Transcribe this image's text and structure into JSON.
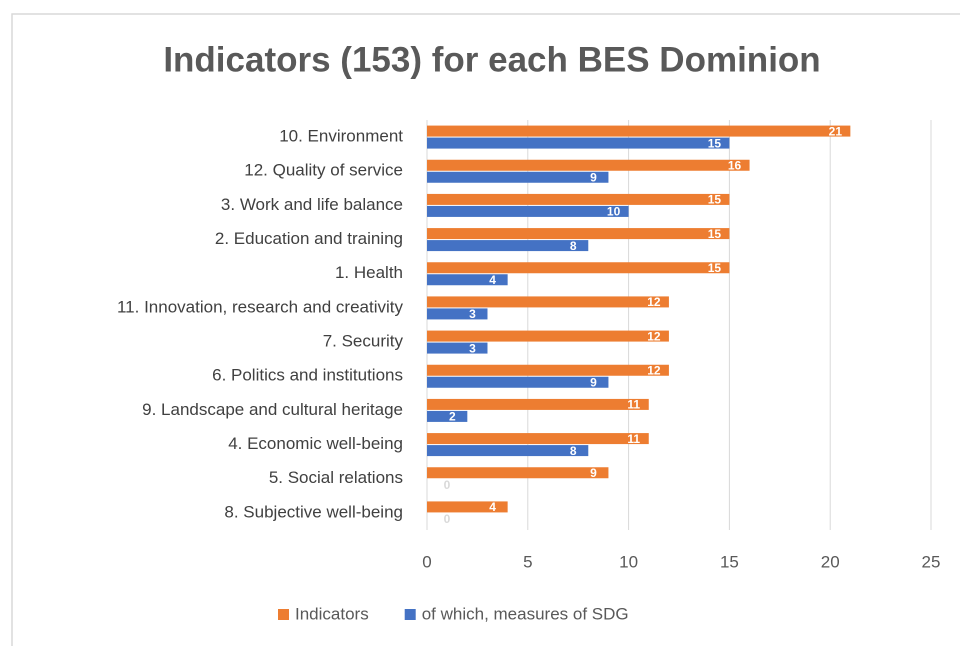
{
  "chart_data": {
    "type": "bar",
    "orientation": "horizontal",
    "title": "Indicators (153) for each BES Dominion",
    "categories": [
      "10. Environment",
      "12. Quality of service",
      "3. Work and life balance",
      "2. Education and training",
      "1. Health",
      "11. Innovation, research and creativity",
      "7. Security",
      "6. Politics and institutions",
      "9. Landscape and cultural heritage",
      "4. Economic well-being",
      "5. Social relations",
      "8. Subjective well-being"
    ],
    "series": [
      {
        "name": "Indicators",
        "color": "#ed7d31",
        "values": [
          21,
          16,
          15,
          15,
          15,
          12,
          12,
          12,
          11,
          11,
          9,
          4
        ]
      },
      {
        "name": "of which, measures of SDG",
        "color": "#4472c4",
        "values": [
          15,
          9,
          10,
          8,
          4,
          3,
          3,
          9,
          2,
          8,
          0,
          0
        ]
      }
    ],
    "xlim": [
      0,
      25
    ],
    "xticks": [
      0,
      5,
      10,
      15,
      20,
      25
    ],
    "grid": true,
    "legend": "bottom",
    "data_labels": true
  }
}
